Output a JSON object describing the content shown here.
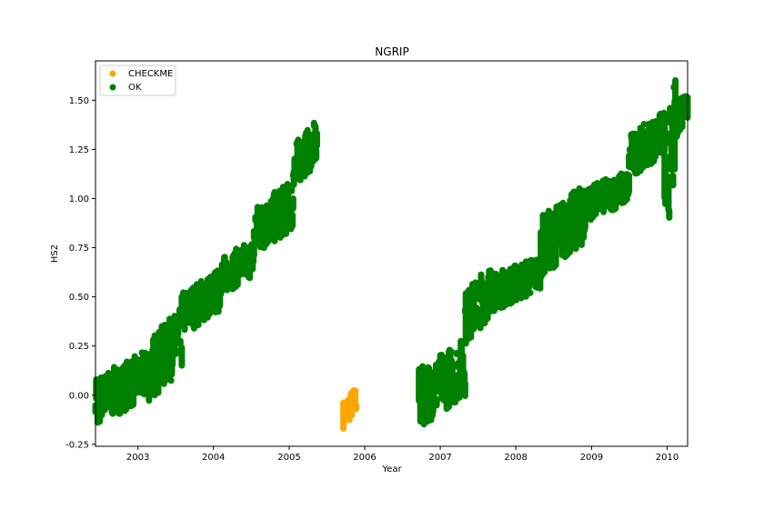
{
  "chart_data": {
    "type": "scatter",
    "title": "NGRIP",
    "xlabel": "Year",
    "ylabel": "HS2",
    "xlim": [
      "2002-06-10",
      "2010-04-10"
    ],
    "ylim": [
      -0.26,
      1.7
    ],
    "x_ticks": [
      "2003",
      "2004",
      "2005",
      "2006",
      "2007",
      "2008",
      "2009",
      "2010"
    ],
    "y_ticks": [
      "-0.25",
      "0.00",
      "0.25",
      "0.50",
      "0.75",
      "1.00",
      "1.25",
      "1.50"
    ],
    "legend": {
      "placement": "top-left",
      "entries": [
        "CHECKME",
        "OK"
      ]
    },
    "grid": false,
    "series": [
      {
        "name": "CHECKME",
        "color": "#FFA500",
        "segments": [
          {
            "x_start": "2005-09-20",
            "x_end": "2005-11-20",
            "y_lo": -0.17,
            "y_hi": 0.05
          }
        ]
      },
      {
        "name": "OK",
        "color": "#008000",
        "segments": [
          {
            "x_start": "2002-06-10",
            "x_end": "2003-02-10",
            "y_lo": -0.16,
            "y_hi": 0.23
          },
          {
            "x_start": "2003-02-10",
            "x_end": "2003-08-01",
            "y_lo": -0.05,
            "y_hi": 0.45
          },
          {
            "x_start": "2003-08-01",
            "x_end": "2004-02-01",
            "y_lo": 0.3,
            "y_hi": 0.65
          },
          {
            "x_start": "2004-02-01",
            "x_end": "2004-07-15",
            "y_lo": 0.5,
            "y_hi": 0.8
          },
          {
            "x_start": "2004-07-15",
            "x_end": "2005-01-20",
            "y_lo": 0.7,
            "y_hi": 1.1
          },
          {
            "x_start": "2005-01-20",
            "x_end": "2005-05-15",
            "y_lo": 1.05,
            "y_hi": 1.4
          },
          {
            "x_start": "2006-09-20",
            "x_end": "2007-05-01",
            "y_lo": -0.17,
            "y_hi": 0.3
          },
          {
            "x_start": "2007-05-01",
            "x_end": "2007-09-01",
            "y_lo": 0.25,
            "y_hi": 0.68
          },
          {
            "x_start": "2007-09-01",
            "x_end": "2008-05-01",
            "y_lo": 0.42,
            "y_hi": 0.72
          },
          {
            "x_start": "2008-05-01",
            "x_end": "2008-12-01",
            "y_lo": 0.6,
            "y_hi": 1.08
          },
          {
            "x_start": "2008-12-01",
            "x_end": "2009-07-01",
            "y_lo": 0.88,
            "y_hi": 1.15
          },
          {
            "x_start": "2009-07-01",
            "x_end": "2009-12-20",
            "y_lo": 1.1,
            "y_hi": 1.45
          },
          {
            "x_start": "2009-12-20",
            "x_end": "2010-02-10",
            "y_lo": 0.77,
            "y_hi": 1.62
          },
          {
            "x_start": "2010-02-10",
            "x_end": "2010-04-10",
            "y_lo": 1.3,
            "y_hi": 1.6
          }
        ]
      }
    ]
  }
}
